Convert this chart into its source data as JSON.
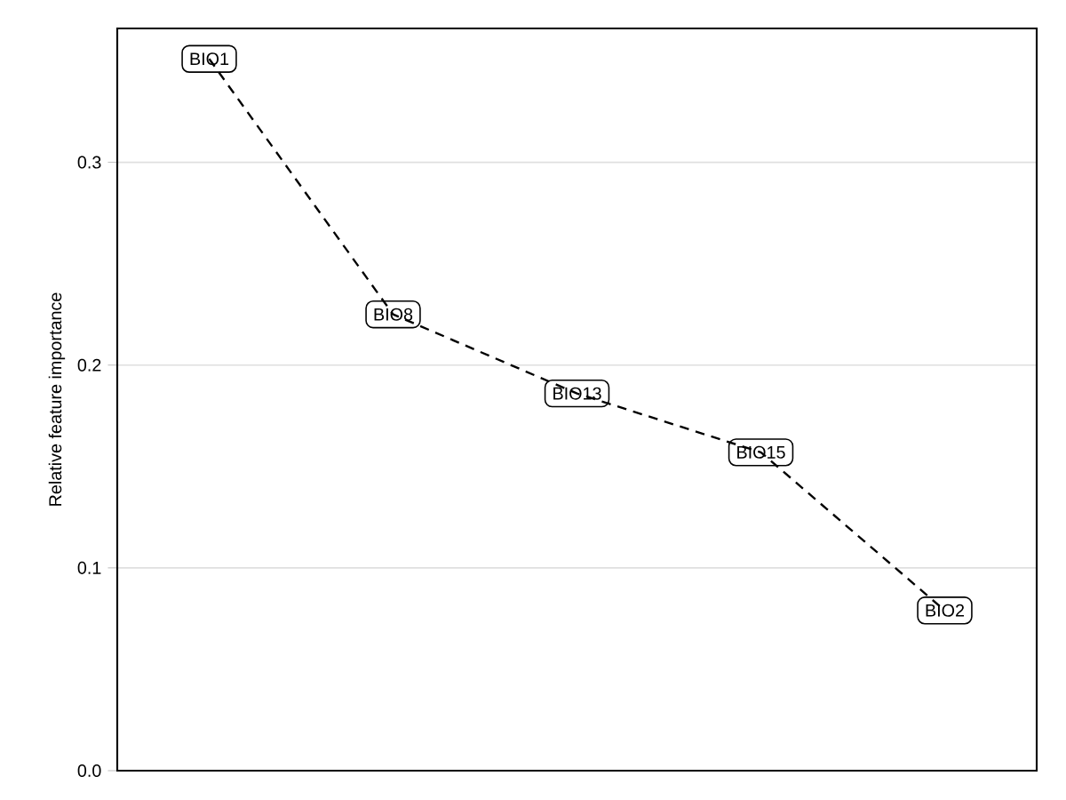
{
  "chart_data": {
    "type": "line",
    "ylabel": "Relative feature importance",
    "categories": [
      "BIO1",
      "BIO8",
      "BIO13",
      "BIO15",
      "BIO2"
    ],
    "series": [
      {
        "color": "#000000",
        "values": [
          0.351,
          0.225,
          0.186,
          0.157,
          0.079
        ]
      }
    ],
    "ylim": [
      0,
      0.366
    ],
    "yticks": [
      {
        "value": 0,
        "label": "0.0"
      },
      0.1,
      0.2,
      0.3
    ],
    "grid": "y",
    "line_style": "dashed",
    "marker": "none",
    "tick_labels": "y"
  }
}
